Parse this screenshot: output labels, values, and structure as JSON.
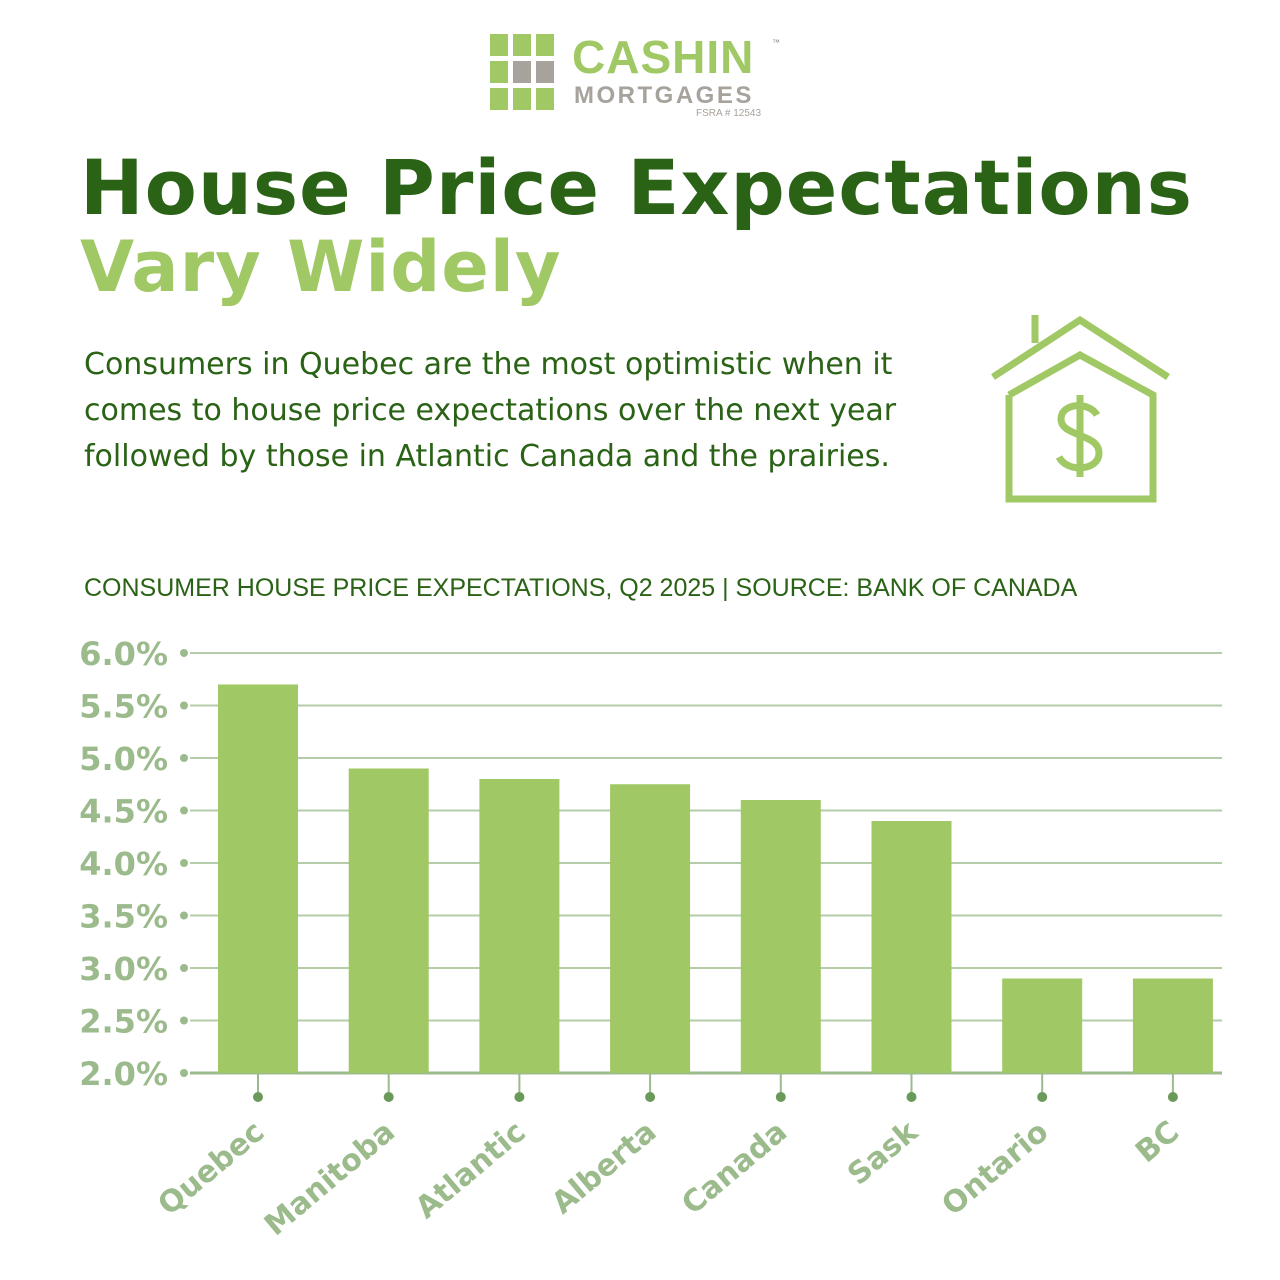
{
  "logo": {
    "name": "CASHIN",
    "tm": "™",
    "subtitle": "MORTGAGES",
    "license": "FSRA # 12543"
  },
  "headline": {
    "line1": "House Price Expectations",
    "line2": "Vary Widely"
  },
  "description": "Consumers in Quebec are the most optimistic when it comes to house price expectations over the next year followed by those in Atlantic Canada and the prairies.",
  "icon": "house-dollar-icon",
  "colors": {
    "dark_green": "#2a6216",
    "light_green": "#a0c864",
    "axis_green": "#9cbb8c",
    "gray": "#a8a29c"
  },
  "chart_caption": "CONSUMER HOUSE PRICE EXPECTATIONS, Q2 2025 | SOURCE: BANK OF CANADA",
  "chart_data": {
    "type": "bar",
    "categories": [
      "Quebec",
      "Manitoba",
      "Atlantic",
      "Alberta",
      "Canada",
      "Sask",
      "Ontario",
      "BC"
    ],
    "values": [
      5.7,
      4.9,
      4.8,
      4.75,
      4.6,
      4.4,
      2.9,
      2.9
    ],
    "unit": "%",
    "ylim": [
      2.0,
      6.0
    ],
    "yticks": [
      "2.0%",
      "2.5%",
      "3.0%",
      "3.5%",
      "4.0%",
      "4.5%",
      "5.0%",
      "5.5%",
      "6.0%"
    ],
    "grid": true,
    "legend": "none"
  }
}
